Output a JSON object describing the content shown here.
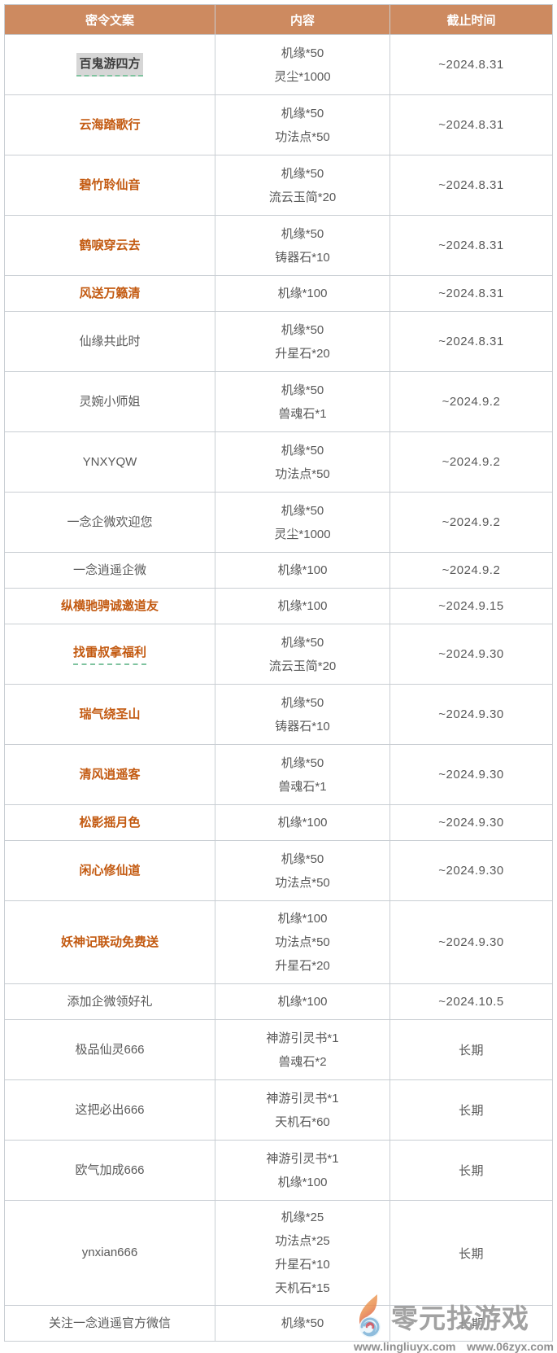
{
  "colors": {
    "header_bg": "#cd8a60",
    "accent_text": "#c35a11",
    "body_text": "#595959",
    "border": "#c9ced3",
    "highlight_bg": "#d6d6d6",
    "underline": "#7fc39f"
  },
  "table": {
    "headers": [
      {
        "label": "密令文案"
      },
      {
        "label": "内容"
      },
      {
        "label": "截止时间"
      }
    ],
    "rows": [
      {
        "code": "百鬼游四方",
        "style": "highlight",
        "rewards": [
          "机缘*50",
          "灵尘*1000"
        ],
        "deadline": "~2024.8.31"
      },
      {
        "code": "云海踏歌行",
        "style": "orange",
        "rewards": [
          "机缘*50",
          "功法点*50"
        ],
        "deadline": "~2024.8.31"
      },
      {
        "code": "碧竹聆仙音",
        "style": "orange",
        "rewards": [
          "机缘*50",
          "流云玉简*20"
        ],
        "deadline": "~2024.8.31"
      },
      {
        "code": "鹤唳穿云去",
        "style": "orange",
        "rewards": [
          "机缘*50",
          "铸器石*10"
        ],
        "deadline": "~2024.8.31"
      },
      {
        "code": "风送万籁清",
        "style": "orange",
        "rewards": [
          "机缘*100"
        ],
        "deadline": "~2024.8.31"
      },
      {
        "code": "仙缘共此时",
        "style": "normal",
        "rewards": [
          "机缘*50",
          "升星石*20"
        ],
        "deadline": "~2024.8.31"
      },
      {
        "code": "灵婉小师姐",
        "style": "normal",
        "rewards": [
          "机缘*50",
          "兽魂石*1"
        ],
        "deadline": "~2024.9.2"
      },
      {
        "code": "YNXYQW",
        "style": "normal",
        "rewards": [
          "机缘*50",
          "功法点*50"
        ],
        "deadline": "~2024.9.2"
      },
      {
        "code": "一念企微欢迎您",
        "style": "normal",
        "rewards": [
          "机缘*50",
          "灵尘*1000"
        ],
        "deadline": "~2024.9.2"
      },
      {
        "code": "一念逍遥企微",
        "style": "normal",
        "rewards": [
          "机缘*100"
        ],
        "deadline": "~2024.9.2"
      },
      {
        "code": "纵横驰骋诚邀道友",
        "style": "orange",
        "rewards": [
          "机缘*100"
        ],
        "deadline": "~2024.9.15"
      },
      {
        "code": "找雷叔拿福利",
        "style": "orange-underline",
        "rewards": [
          "机缘*50",
          "流云玉简*20"
        ],
        "deadline": "~2024.9.30"
      },
      {
        "code": "瑞气绕圣山",
        "style": "orange",
        "rewards": [
          "机缘*50",
          "铸器石*10"
        ],
        "deadline": "~2024.9.30"
      },
      {
        "code": "清风逍遥客",
        "style": "orange",
        "rewards": [
          "机缘*50",
          "兽魂石*1"
        ],
        "deadline": "~2024.9.30"
      },
      {
        "code": "松影摇月色",
        "style": "orange",
        "rewards": [
          "机缘*100"
        ],
        "deadline": "~2024.9.30"
      },
      {
        "code": "闲心修仙道",
        "style": "orange",
        "rewards": [
          "机缘*50",
          "功法点*50"
        ],
        "deadline": "~2024.9.30"
      },
      {
        "code": "妖神记联动免费送",
        "style": "orange",
        "rewards": [
          "机缘*100",
          "功法点*50",
          "升星石*20"
        ],
        "deadline": "~2024.9.30"
      },
      {
        "code": "添加企微领好礼",
        "style": "normal",
        "rewards": [
          "机缘*100"
        ],
        "deadline": "~2024.10.5"
      },
      {
        "code": "极品仙灵666",
        "style": "normal",
        "rewards": [
          "神游引灵书*1",
          "兽魂石*2"
        ],
        "deadline": "长期"
      },
      {
        "code": "这把必出666",
        "style": "normal",
        "rewards": [
          "神游引灵书*1",
          "天机石*60"
        ],
        "deadline": "长期"
      },
      {
        "code": "欧气加成666",
        "style": "normal",
        "rewards": [
          "神游引灵书*1",
          "机缘*100"
        ],
        "deadline": "长期"
      },
      {
        "code": "ynxian666",
        "style": "normal",
        "rewards": [
          "机缘*25",
          "功法点*25",
          "升星石*10",
          "天机石*15"
        ],
        "deadline": "长期"
      },
      {
        "code": "关注一念逍遥官方微信",
        "style": "normal",
        "rewards": [
          "机缘*50"
        ],
        "deadline": "长期"
      }
    ]
  },
  "watermark": {
    "brand": "零元找游戏",
    "url1": "www.lingliuyx.com",
    "url2": "www.06zyx.com"
  }
}
